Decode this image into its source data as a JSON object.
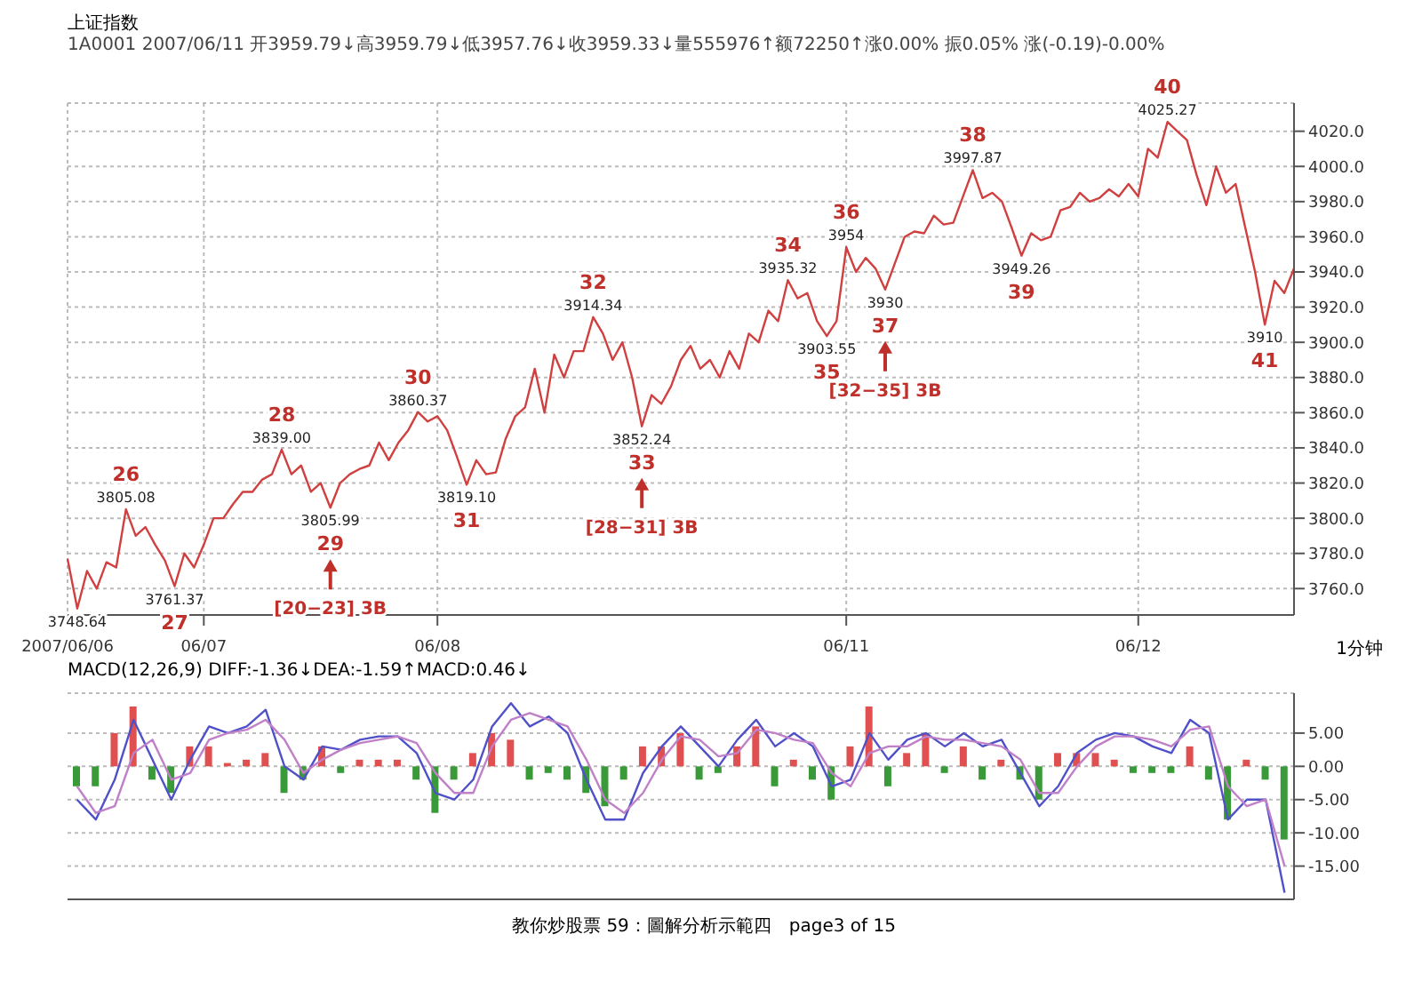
{
  "chart_data": [
    {
      "type": "line",
      "title": "上证指数",
      "subtitle": "1A0001 2007/06/11 开3959.79↓高3959.79↓低3957.76↓收3959.33↓量555976↑额72250↑涨0.00% 振0.05% 涨(-0.19)-0.00%",
      "xlabel": "1分钟",
      "color": "#d04040",
      "categories": [
        "2007/06/06",
        null,
        null,
        null,
        null,
        null,
        null,
        null,
        null,
        null,
        null,
        null,
        null,
        null,
        "06/07",
        null,
        null,
        null,
        null,
        null,
        null,
        null,
        null,
        null,
        null,
        null,
        null,
        null,
        null,
        null,
        null,
        null,
        null,
        null,
        null,
        null,
        null,
        null,
        "06/08",
        null,
        null,
        null,
        null,
        null,
        null,
        null,
        null,
        null,
        null,
        null,
        null,
        null,
        null,
        null,
        null,
        null,
        null,
        null,
        null,
        null,
        null,
        null,
        null,
        null,
        null,
        null,
        null,
        null,
        null,
        null,
        null,
        null,
        null,
        null,
        null,
        null,
        null,
        null,
        null,
        null,
        "06/11",
        null,
        null,
        null,
        null,
        null,
        null,
        null,
        null,
        null,
        null,
        null,
        null,
        null,
        null,
        null,
        null,
        null,
        null,
        null,
        null,
        null,
        null,
        null,
        null,
        null,
        null,
        null,
        null,
        null,
        "06/12",
        null,
        null,
        null,
        null,
        null,
        null,
        null,
        null,
        null,
        null,
        null,
        null,
        null,
        null,
        null,
        null
      ],
      "values": [
        3777,
        3748.64,
        3770,
        3760,
        3775,
        3772,
        3805.08,
        3790,
        3795,
        3785,
        3776,
        3761.37,
        3780,
        3772,
        3785,
        3800,
        3800,
        3808,
        3815,
        3815,
        3822,
        3825,
        3839,
        3825,
        3830,
        3815,
        3820,
        3805.99,
        3820,
        3825,
        3828,
        3830,
        3843,
        3833,
        3843,
        3850,
        3860.37,
        3855,
        3858,
        3850,
        3835,
        3819.1,
        3833,
        3825,
        3826,
        3845,
        3858,
        3863,
        3885,
        3860,
        3893,
        3880,
        3895,
        3895,
        3914.34,
        3905,
        3890,
        3900,
        3880,
        3852.24,
        3870,
        3865,
        3875,
        3890,
        3898,
        3885,
        3890,
        3880,
        3895,
        3885,
        3905,
        3900,
        3918,
        3912,
        3935.32,
        3925,
        3928,
        3912,
        3903.55,
        3912,
        3954,
        3940,
        3948,
        3942,
        3930,
        3945,
        3960,
        3963,
        3962,
        3972,
        3967,
        3968,
        3983,
        3997.87,
        3982,
        3985,
        3980,
        3965,
        3949.26,
        3962,
        3958,
        3960,
        3975,
        3977,
        3985,
        3980,
        3982,
        3987,
        3983,
        3990,
        3983,
        4010,
        4005,
        4025.27,
        4020,
        4015,
        3995,
        3978,
        4000,
        3985,
        3990,
        3965,
        3940,
        3910,
        3935,
        3928,
        3942
      ],
      "ylim": [
        3745,
        4036
      ],
      "yticks": [
        {
          "value": 3760,
          "label": "3760.0"
        },
        {
          "value": 3780,
          "label": "3780.0"
        },
        {
          "value": 3800,
          "label": "3800.0"
        },
        {
          "value": 3820,
          "label": "3820.0"
        },
        {
          "value": 3840,
          "label": "3840.0"
        },
        {
          "value": 3860,
          "label": "3860.0"
        },
        {
          "value": 3880,
          "label": "3880.0"
        },
        {
          "value": 3900,
          "label": "3900.0"
        },
        {
          "value": 3920,
          "label": "3920.0"
        },
        {
          "value": 3940,
          "label": "3940.0"
        },
        {
          "value": 3960,
          "label": "3960.0"
        },
        {
          "value": 3980,
          "label": "3980.0"
        },
        {
          "value": 4000,
          "label": "4000.0"
        },
        {
          "value": 4020,
          "label": "4020.0"
        }
      ],
      "grid": true,
      "annotations": [
        {
          "text": "3805.08",
          "y": 3805.08
        },
        {
          "text": "3761.37",
          "y": 3761.37
        },
        {
          "text": "3839.00",
          "y": 3839
        },
        {
          "text": "3805.99",
          "y": 3805.99
        },
        {
          "text": "3860.37",
          "y": 3860.37
        },
        {
          "text": "3819.10",
          "y": 3819.1
        },
        {
          "text": "3914.34",
          "y": 3914.34
        },
        {
          "text": "3852.24",
          "y": 3852.24
        },
        {
          "text": "3935.32",
          "y": 3935.32
        },
        {
          "text": "3903.55",
          "y": 3903.55
        },
        {
          "text": "3954",
          "y": 3954
        },
        {
          "text": "3930",
          "y": 3930
        },
        {
          "text": "3997.87",
          "y": 3997.87
        },
        {
          "text": "3949.26",
          "y": 3949.26
        },
        {
          "text": "4025.27",
          "y": 4025.27
        },
        {
          "text": "3910",
          "y": 3910
        },
        {
          "text": "3748.64",
          "y": 3748.64
        },
        "26",
        "27",
        "28",
        "29",
        "30",
        "31",
        "32",
        "33",
        "34",
        "35",
        "36",
        "37",
        "38",
        "39",
        "40",
        "41",
        "[20−23] 3B",
        "[28−31] 3B",
        "[32−35] 3B"
      ]
    },
    {
      "type": "bar",
      "title": "MACD(12,26,9) DIFF:-1.36↓DEA:-1.59↑MACD:0.46↓",
      "categories": [
        null,
        null,
        null,
        null,
        null,
        null,
        null,
        null,
        null,
        null,
        null,
        null,
        null,
        null,
        null,
        null,
        null,
        null,
        null,
        null,
        null,
        null,
        null,
        null,
        null,
        null,
        null,
        null,
        null,
        null,
        null,
        null,
        null,
        null,
        null,
        null,
        null,
        null,
        null,
        null,
        null,
        null,
        null,
        null,
        null,
        null,
        null,
        null,
        null,
        null,
        null,
        null,
        null,
        null,
        null,
        null,
        null,
        null,
        null,
        null,
        null,
        null,
        null,
        null,
        null
      ],
      "series": [
        {
          "values": [
            -3,
            -3,
            5,
            9,
            -2,
            -4,
            3,
            3,
            0.5,
            1,
            2,
            -4,
            -2,
            3,
            -1,
            1,
            1,
            1,
            -2,
            -7,
            -2,
            2,
            5,
            4,
            -2,
            -1,
            -2,
            -4,
            -6,
            -2,
            3,
            3,
            5,
            -2,
            -1,
            3,
            6,
            -3,
            1,
            -2,
            -5,
            3,
            9,
            -3,
            2,
            5,
            -1,
            3,
            -2,
            1,
            -2,
            -5,
            2,
            2,
            2,
            1,
            -1,
            -1,
            -1,
            3,
            -2,
            -8,
            1,
            -2,
            -11
          ],
          "colors": [
            "#3a9a3a",
            "#3a9a3a",
            "#e05050",
            "#e05050",
            "#3a9a3a",
            "#3a9a3a",
            "#e05050",
            "#e05050",
            "#e05050",
            "#e05050",
            "#e05050",
            "#3a9a3a",
            "#3a9a3a",
            "#e05050",
            "#3a9a3a",
            "#e05050",
            "#e05050",
            "#e05050",
            "#3a9a3a",
            "#3a9a3a",
            "#3a9a3a",
            "#e05050",
            "#e05050",
            "#e05050",
            "#3a9a3a",
            "#3a9a3a",
            "#3a9a3a",
            "#3a9a3a",
            "#3a9a3a",
            "#3a9a3a",
            "#e05050",
            "#e05050",
            "#e05050",
            "#3a9a3a",
            "#3a9a3a",
            "#e05050",
            "#e05050",
            "#3a9a3a",
            "#e05050",
            "#3a9a3a",
            "#3a9a3a",
            "#e05050",
            "#e05050",
            "#3a9a3a",
            "#e05050",
            "#e05050",
            "#3a9a3a",
            "#e05050",
            "#3a9a3a",
            "#e05050",
            "#3a9a3a",
            "#3a9a3a",
            "#e05050",
            "#e05050",
            "#e05050",
            "#e05050",
            "#3a9a3a",
            "#3a9a3a",
            "#3a9a3a",
            "#e05050",
            "#3a9a3a",
            "#3a9a3a",
            "#e05050",
            "#3a9a3a",
            "#3a9a3a"
          ]
        },
        {
          "type": "line",
          "color": "#5050c8",
          "values": [
            -5,
            -8,
            -2,
            7,
            1,
            -5,
            1,
            6,
            5,
            6,
            8.5,
            0,
            -2,
            3,
            2.5,
            4,
            4.5,
            4.5,
            2,
            -4,
            -5,
            -2,
            6,
            9.5,
            6,
            7.5,
            5,
            -2,
            -8,
            -8,
            -1,
            3,
            6,
            3,
            0,
            4,
            7,
            3,
            5,
            3,
            -3,
            -2,
            5,
            1,
            4,
            5,
            3,
            5,
            3,
            4,
            -1,
            -6,
            -3,
            2,
            4,
            5,
            4.5,
            3,
            2,
            7,
            5,
            -8,
            -5,
            -5,
            -19
          ]
        },
        {
          "type": "line",
          "color": "#c080c8",
          "values": [
            -3,
            -7,
            -6,
            2,
            4,
            -2,
            -1,
            4,
            5,
            5.5,
            7,
            4,
            -1,
            1,
            2.5,
            3.5,
            4,
            4.5,
            3.5,
            -1,
            -4,
            -4,
            3,
            7,
            8,
            7,
            6,
            1,
            -5,
            -7,
            -4,
            1,
            4.5,
            4,
            1.5,
            2,
            5.5,
            5,
            4,
            3.5,
            -1,
            -3,
            2,
            3,
            3,
            4.5,
            4,
            4,
            3.5,
            3,
            1,
            -4,
            -4,
            0,
            3,
            4.5,
            4.5,
            4,
            3,
            5.5,
            6,
            -3,
            -6,
            -5,
            -15
          ]
        }
      ],
      "ylim": [
        -20,
        11
      ],
      "yticks": [
        {
          "value": -15,
          "label": "-15.00"
        },
        {
          "value": -10,
          "label": "-10.00"
        },
        {
          "value": -5,
          "label": "-5.00"
        },
        {
          "value": 0,
          "label": "0.00"
        },
        {
          "value": 5,
          "label": "5.00"
        }
      ],
      "tick_labels": "y",
      "grid": "y",
      "annotations": [
        "教你炒股票 59：圖解分析示範四　page3 of 15"
      ]
    }
  ]
}
